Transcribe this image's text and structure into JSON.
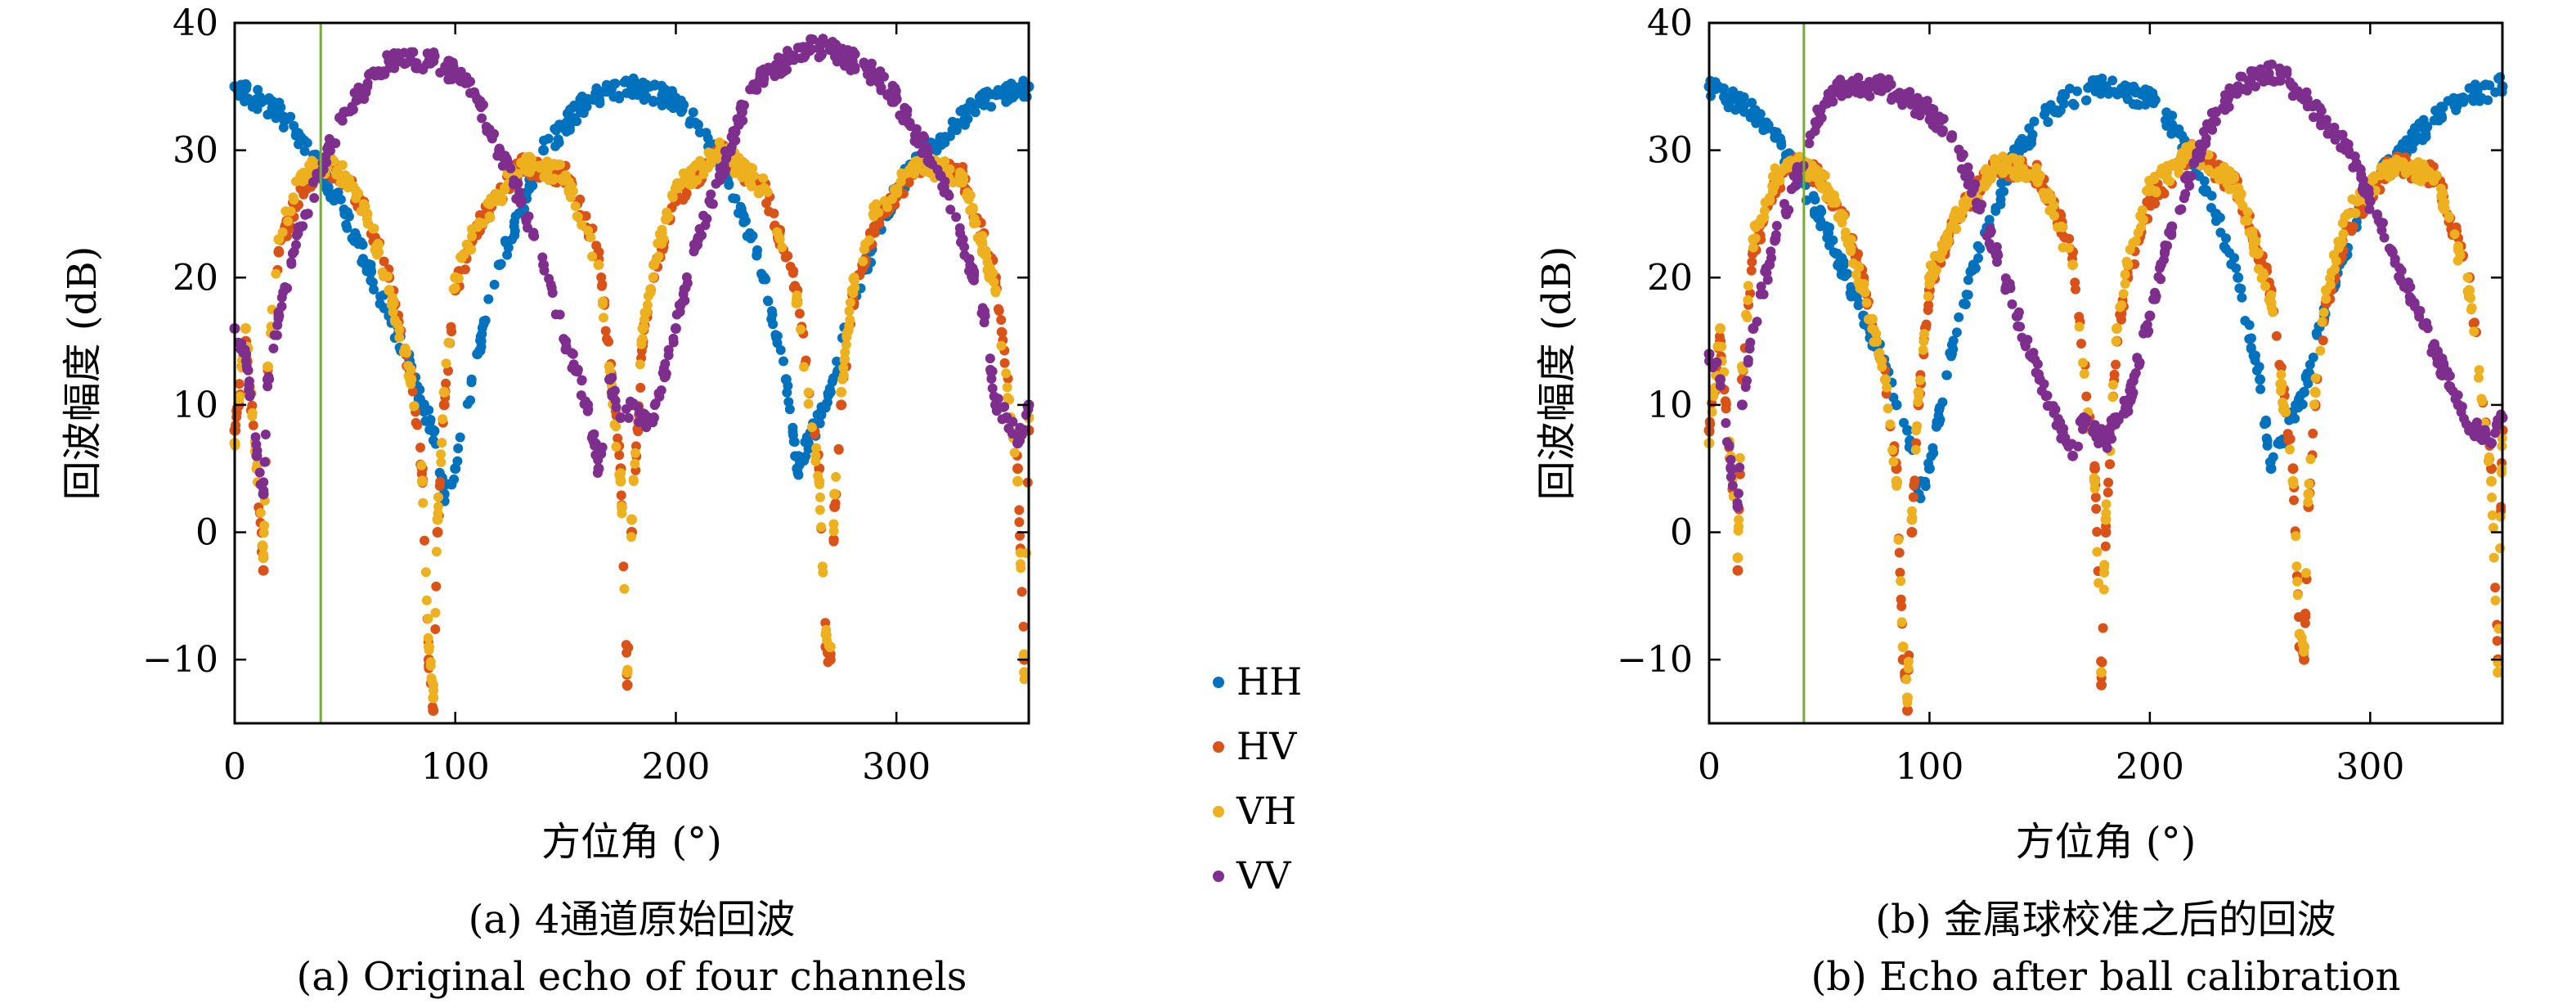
{
  "chart_data": [
    {
      "type": "scatter",
      "xlabel": "方位角 (°)",
      "ylabel": "回波幅度 (dB)",
      "caption_cn": "(a) 4通道原始回波",
      "caption_en": "(a) Original echo of four channels",
      "xlim": [
        0,
        360
      ],
      "ylim": [
        -15,
        40
      ],
      "xticks": [
        0,
        100,
        200,
        300
      ],
      "yticks": [
        -10,
        0,
        10,
        20,
        30,
        40
      ],
      "vline_x": 39,
      "vline_color": "#77ac30",
      "grid": false,
      "series": [
        {
          "name": "HH",
          "color": "#0072bd",
          "x": [
            0,
            10,
            20,
            30,
            40,
            50,
            60,
            70,
            80,
            85,
            90,
            95,
            100,
            110,
            120,
            140,
            160,
            180,
            200,
            210,
            220,
            230,
            240,
            250,
            255,
            260,
            270,
            280,
            300,
            320,
            340,
            360
          ],
          "y": [
            35,
            34,
            33,
            31,
            28,
            25,
            21,
            17,
            13,
            10,
            8,
            3,
            5,
            14,
            21,
            30,
            34,
            35,
            34,
            32,
            29,
            25,
            20,
            12,
            5,
            7,
            11,
            18,
            27,
            31,
            34,
            35
          ]
        },
        {
          "name": "HV",
          "color": "#d95319",
          "x": [
            0,
            5,
            10,
            13,
            15,
            20,
            30,
            40,
            50,
            60,
            70,
            80,
            85,
            88,
            90,
            92,
            95,
            100,
            110,
            130,
            150,
            165,
            175,
            178,
            180,
            185,
            190,
            200,
            220,
            240,
            255,
            265,
            268,
            270,
            272,
            275,
            280,
            290,
            310,
            330,
            345,
            355,
            358,
            360
          ],
          "y": [
            8,
            15,
            5,
            -3,
            12,
            22,
            27,
            29,
            28,
            25,
            20,
            12,
            5,
            -10,
            -14,
            0,
            10,
            19,
            24,
            29,
            28,
            22,
            5,
            -12,
            0,
            15,
            20,
            26,
            30,
            27,
            19,
            5,
            -9,
            -10,
            2,
            10,
            18,
            24,
            29,
            28,
            20,
            5,
            -10,
            8
          ]
        },
        {
          "name": "VH",
          "color": "#edb120",
          "x": [
            0,
            5,
            10,
            13,
            15,
            20,
            30,
            40,
            50,
            60,
            70,
            80,
            85,
            88,
            90,
            92,
            95,
            100,
            110,
            130,
            150,
            165,
            175,
            178,
            180,
            185,
            190,
            200,
            220,
            240,
            255,
            265,
            268,
            270,
            272,
            275,
            280,
            290,
            310,
            330,
            345,
            355,
            358,
            360
          ],
          "y": [
            7,
            16,
            5,
            -2,
            13,
            23,
            28,
            29,
            28,
            25,
            19,
            12,
            4,
            -9,
            -13,
            1,
            11,
            20,
            24,
            29,
            28,
            21,
            4,
            -11,
            1,
            16,
            21,
            27,
            30,
            27,
            18,
            4,
            -8,
            -9,
            3,
            11,
            19,
            25,
            29,
            28,
            19,
            4,
            -11,
            9
          ]
        },
        {
          "name": "VV",
          "color": "#7e2f8e",
          "x": [
            0,
            5,
            10,
            13,
            15,
            20,
            30,
            40,
            50,
            60,
            70,
            80,
            90,
            100,
            110,
            120,
            130,
            140,
            150,
            160,
            165,
            170,
            175,
            180,
            185,
            190,
            200,
            210,
            220,
            230,
            240,
            250,
            260,
            265,
            270,
            280,
            290,
            300,
            310,
            320,
            330,
            340,
            345,
            350,
            355,
            360
          ],
          "y": [
            16,
            14,
            6,
            3,
            12,
            17,
            24,
            29,
            33,
            35,
            37,
            37,
            37,
            36,
            34,
            30,
            26,
            21,
            15,
            10,
            5,
            12,
            9,
            10,
            9,
            9,
            16,
            23,
            28,
            33,
            36,
            37,
            38,
            38,
            38,
            37,
            36,
            34,
            31,
            28,
            23,
            17,
            10,
            9,
            7,
            10
          ]
        }
      ]
    },
    {
      "type": "scatter",
      "xlabel": "方位角 (°)",
      "ylabel": "回波幅度 (dB)",
      "caption_cn": "(b) 金属球校准之后的回波",
      "caption_en": "(b) Echo after ball calibration",
      "xlim": [
        0,
        360
      ],
      "ylim": [
        -15,
        40
      ],
      "xticks": [
        0,
        100,
        200,
        300
      ],
      "yticks": [
        -10,
        0,
        10,
        20,
        30,
        40
      ],
      "vline_x": 43,
      "vline_color": "#77ac30",
      "grid": false,
      "series": [
        {
          "name": "HH",
          "color": "#0072bd",
          "x": [
            0,
            10,
            20,
            30,
            40,
            50,
            60,
            70,
            80,
            85,
            90,
            95,
            100,
            110,
            120,
            140,
            160,
            180,
            200,
            210,
            220,
            230,
            240,
            250,
            255,
            260,
            270,
            280,
            300,
            320,
            340,
            360
          ],
          "y": [
            35,
            34,
            33,
            31,
            28,
            25,
            21,
            17,
            13,
            10,
            8,
            3,
            5,
            14,
            21,
            30,
            34,
            35,
            34,
            32,
            29,
            25,
            20,
            12,
            5,
            7,
            11,
            18,
            27,
            31,
            34,
            35
          ]
        },
        {
          "name": "HV",
          "color": "#d95319",
          "x": [
            0,
            5,
            10,
            13,
            15,
            20,
            30,
            40,
            50,
            60,
            70,
            80,
            85,
            88,
            90,
            92,
            95,
            100,
            110,
            130,
            150,
            165,
            175,
            178,
            180,
            185,
            190,
            200,
            220,
            240,
            255,
            265,
            268,
            270,
            272,
            275,
            280,
            290,
            310,
            330,
            345,
            355,
            358,
            360
          ],
          "y": [
            8,
            15,
            5,
            -3,
            12,
            22,
            27,
            29,
            28,
            25,
            20,
            12,
            5,
            -10,
            -14,
            0,
            10,
            19,
            24,
            29,
            28,
            22,
            5,
            -12,
            0,
            15,
            20,
            26,
            30,
            27,
            19,
            5,
            -9,
            -10,
            2,
            10,
            18,
            24,
            29,
            28,
            20,
            5,
            -10,
            8
          ]
        },
        {
          "name": "VH",
          "color": "#edb120",
          "x": [
            0,
            5,
            10,
            13,
            15,
            20,
            30,
            40,
            50,
            60,
            70,
            80,
            85,
            88,
            90,
            92,
            95,
            100,
            110,
            130,
            150,
            165,
            175,
            178,
            180,
            185,
            190,
            200,
            220,
            240,
            255,
            265,
            268,
            270,
            272,
            275,
            280,
            290,
            310,
            330,
            345,
            355,
            358,
            360
          ],
          "y": [
            7,
            16,
            5,
            -2,
            13,
            23,
            28,
            29,
            28,
            25,
            19,
            12,
            4,
            -9,
            -13,
            1,
            11,
            20,
            24,
            29,
            28,
            21,
            4,
            -11,
            1,
            16,
            21,
            27,
            30,
            27,
            18,
            4,
            -8,
            -9,
            3,
            11,
            19,
            25,
            29,
            28,
            19,
            4,
            -11,
            9
          ]
        },
        {
          "name": "VV",
          "color": "#7e2f8e",
          "x": [
            0,
            5,
            10,
            13,
            15,
            20,
            30,
            40,
            50,
            60,
            70,
            80,
            90,
            100,
            110,
            120,
            130,
            140,
            150,
            160,
            165,
            170,
            175,
            180,
            185,
            190,
            200,
            210,
            220,
            230,
            240,
            250,
            260,
            265,
            270,
            280,
            290,
            300,
            310,
            320,
            330,
            340,
            345,
            350,
            355,
            360
          ],
          "y": [
            14,
            12,
            5,
            2,
            10,
            16,
            23,
            28,
            33,
            35,
            35,
            35,
            34,
            33,
            31,
            27,
            22,
            17,
            12,
            8,
            6,
            9,
            8,
            7,
            9,
            10,
            17,
            24,
            29,
            33,
            35,
            36,
            36,
            35,
            34,
            32,
            30,
            26,
            22,
            18,
            14,
            10,
            8,
            8,
            7,
            9
          ]
        }
      ]
    }
  ],
  "legend": {
    "placement": "center",
    "items": [
      {
        "label": "HH",
        "color": "#0072bd"
      },
      {
        "label": "HV",
        "color": "#d95319"
      },
      {
        "label": "VH",
        "color": "#edb120"
      },
      {
        "label": "VV",
        "color": "#7e2f8e"
      }
    ]
  }
}
